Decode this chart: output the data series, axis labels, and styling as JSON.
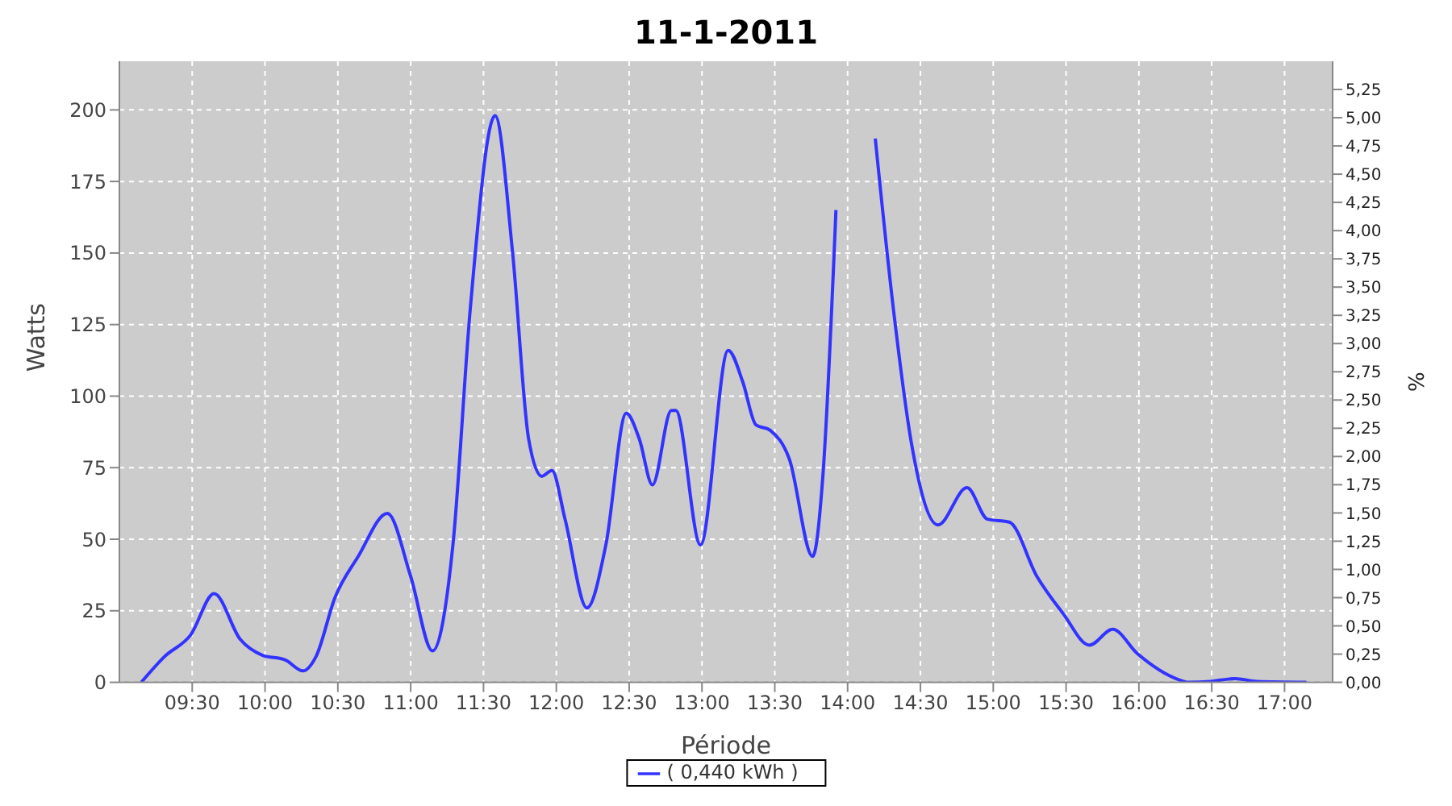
{
  "chart_data": {
    "type": "line",
    "title": "11-1-2011",
    "xlabel": "Période",
    "ylabel": "Watts",
    "y2label": "%",
    "xlim": [
      9.0,
      17.33
    ],
    "xticks": [
      {
        "value": 9.5,
        "label": "09:30"
      },
      {
        "value": 10,
        "label": "10:00"
      },
      {
        "value": 10.5,
        "label": "10:30"
      },
      {
        "value": 11,
        "label": "11:00"
      },
      {
        "value": 11.5,
        "label": "11:30"
      },
      {
        "value": 12,
        "label": "12:00"
      },
      {
        "value": 12.5,
        "label": "12:30"
      },
      {
        "value": 13,
        "label": "13:00"
      },
      {
        "value": 13.5,
        "label": "13:30"
      },
      {
        "value": 14,
        "label": "14:00"
      },
      {
        "value": 14.5,
        "label": "14:30"
      },
      {
        "value": 15,
        "label": "15:00"
      },
      {
        "value": 15.5,
        "label": "15:30"
      },
      {
        "value": 16,
        "label": "16:00"
      },
      {
        "value": 16.5,
        "label": "16:30"
      },
      {
        "value": 17,
        "label": "17:00"
      }
    ],
    "ylim": [
      0,
      217
    ],
    "yticks": [
      0,
      25,
      50,
      75,
      100,
      125,
      150,
      175,
      200
    ],
    "y2lim": [
      0,
      5.5
    ],
    "y2ticks": [
      {
        "value": 0,
        "label": "0,00"
      },
      {
        "value": 0.25,
        "label": "0,25"
      },
      {
        "value": 0.5,
        "label": "0,50"
      },
      {
        "value": 0.75,
        "label": "0,75"
      },
      {
        "value": 1,
        "label": "1,00"
      },
      {
        "value": 1.25,
        "label": "1,25"
      },
      {
        "value": 1.5,
        "label": "1,50"
      },
      {
        "value": 1.75,
        "label": "1,75"
      },
      {
        "value": 2,
        "label": "2,00"
      },
      {
        "value": 2.25,
        "label": "2,25"
      },
      {
        "value": 2.5,
        "label": "2,50"
      },
      {
        "value": 2.75,
        "label": "2,75"
      },
      {
        "value": 3,
        "label": "3,00"
      },
      {
        "value": 3.25,
        "label": "3,25"
      },
      {
        "value": 3.5,
        "label": "3,50"
      },
      {
        "value": 3.75,
        "label": "3,75"
      },
      {
        "value": 4,
        "label": "4,00"
      },
      {
        "value": 4.25,
        "label": "4,25"
      },
      {
        "value": 4.5,
        "label": "4,50"
      },
      {
        "value": 4.75,
        "label": "4,75"
      },
      {
        "value": 5,
        "label": "5,00"
      },
      {
        "value": 5.25,
        "label": "5,25"
      }
    ],
    "grid": true,
    "legend": "bottom",
    "marker": "none",
    "line_style": "solid",
    "x": [
      9.15,
      9.31,
      9.49,
      9.65,
      9.83,
      9.98,
      10.14,
      10.26,
      10.35,
      10.48,
      10.64,
      10.84,
      11.0,
      11.15,
      11.29,
      11.41,
      11.58,
      11.7,
      11.81,
      11.9,
      11.97,
      12.06,
      12.21,
      12.34,
      12.48,
      12.57,
      12.66,
      12.79,
      12.82,
      12.99,
      13.18,
      13.28,
      13.37,
      13.47,
      13.6,
      13.76,
      13.83,
      13.92,
      14.01,
      14.1,
      14.19,
      14.32,
      14.44,
      14.62,
      14.82,
      14.96,
      15.11,
      15.3,
      15.48,
      15.66,
      15.82,
      15.99,
      16.27,
      16.34,
      16.49,
      16.66,
      16.81,
      17.15
    ],
    "series": [
      {
        "name": "( 0,440 kWh )",
        "color": "#3333ff",
        "values": [
          0,
          9,
          16.6,
          31,
          15,
          9.5,
          7.8,
          4,
          9,
          29.6,
          44,
          59,
          37,
          11,
          48,
          131,
          198,
          150,
          85,
          72,
          74,
          57,
          26,
          48,
          94,
          85,
          69,
          95,
          95,
          48,
          116,
          105,
          90,
          88,
          78,
          44,
          72,
          165,
          null,
          null,
          190,
          128,
          83,
          55,
          68,
          57,
          56,
          37,
          24,
          13,
          18.5,
          10,
          1,
          0,
          0.3,
          1.3,
          0.3,
          0
        ]
      }
    ]
  }
}
